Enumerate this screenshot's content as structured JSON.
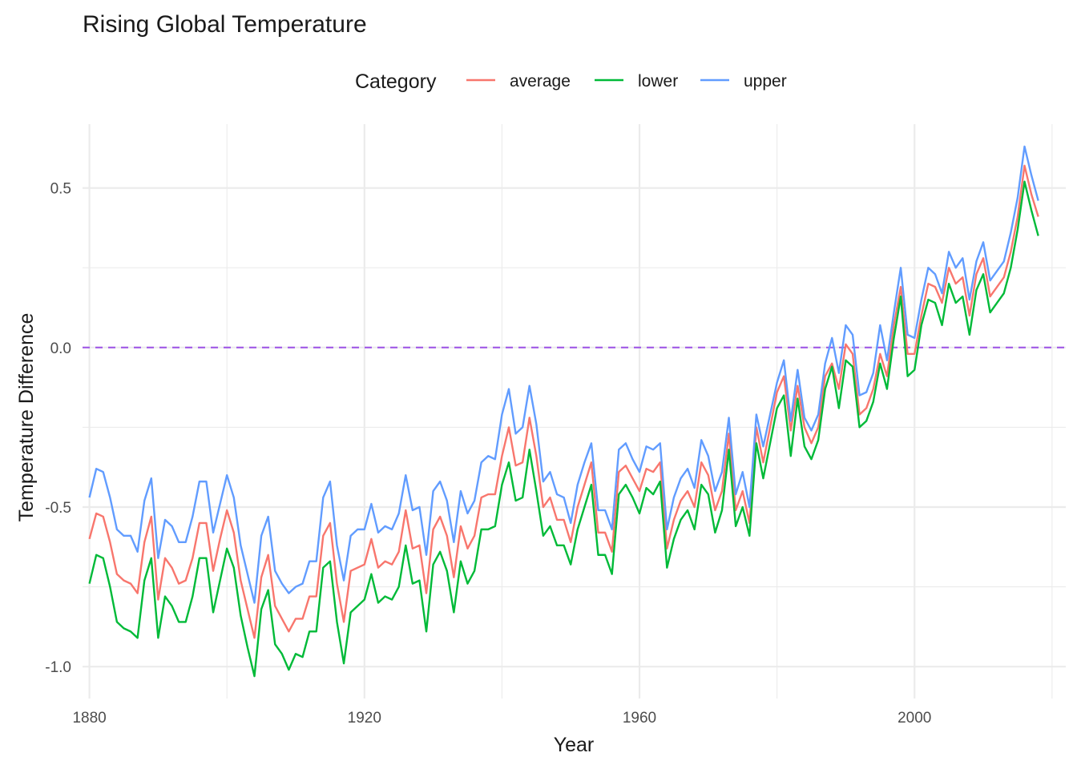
{
  "chart_data": {
    "type": "line",
    "title": "Rising Global Temperature",
    "xlabel": "Year",
    "ylabel": "Temperature Difference",
    "legend_title": "Category",
    "legend_position": "top",
    "grid": true,
    "xlim": [
      1879,
      2022
    ],
    "ylim": [
      -1.1,
      0.7
    ],
    "x_ticks": [
      1880,
      1920,
      1960,
      2000
    ],
    "x_tick_labels": [
      "1880",
      "1920",
      "1960",
      "2000"
    ],
    "y_ticks": [
      -1.0,
      -0.5,
      0.0,
      0.5
    ],
    "y_tick_labels": [
      "-1.0",
      "-0.5",
      "0.0",
      "0.5"
    ],
    "reference_line": {
      "y": 0.0,
      "style": "dashed",
      "color": "#a15ae6"
    },
    "x": [
      1880,
      1881,
      1882,
      1883,
      1884,
      1885,
      1886,
      1887,
      1888,
      1889,
      1890,
      1891,
      1892,
      1893,
      1894,
      1895,
      1896,
      1897,
      1898,
      1899,
      1900,
      1901,
      1902,
      1903,
      1904,
      1905,
      1906,
      1907,
      1908,
      1909,
      1910,
      1911,
      1912,
      1913,
      1914,
      1915,
      1916,
      1917,
      1918,
      1919,
      1920,
      1921,
      1922,
      1923,
      1924,
      1925,
      1926,
      1927,
      1928,
      1929,
      1930,
      1931,
      1932,
      1933,
      1934,
      1935,
      1936,
      1937,
      1938,
      1939,
      1940,
      1941,
      1942,
      1943,
      1944,
      1945,
      1946,
      1947,
      1948,
      1949,
      1950,
      1951,
      1952,
      1953,
      1954,
      1955,
      1956,
      1957,
      1958,
      1959,
      1960,
      1961,
      1962,
      1963,
      1964,
      1965,
      1966,
      1967,
      1968,
      1969,
      1970,
      1971,
      1972,
      1973,
      1974,
      1975,
      1976,
      1977,
      1978,
      1979,
      1980,
      1981,
      1982,
      1983,
      1984,
      1985,
      1986,
      1987,
      1988,
      1989,
      1990,
      1991,
      1992,
      1993,
      1994,
      1995,
      1996,
      1997,
      1998,
      1999,
      2000,
      2001,
      2002,
      2003,
      2004,
      2005,
      2006,
      2007,
      2008,
      2009,
      2010,
      2011,
      2012,
      2013,
      2014,
      2015,
      2016,
      2017,
      2018
    ],
    "series": [
      {
        "name": "average",
        "color": "#F8766D",
        "values": [
          -0.6,
          -0.52,
          -0.53,
          -0.61,
          -0.71,
          -0.73,
          -0.74,
          -0.77,
          -0.61,
          -0.53,
          -0.79,
          -0.66,
          -0.69,
          -0.74,
          -0.73,
          -0.66,
          -0.55,
          -0.55,
          -0.7,
          -0.6,
          -0.51,
          -0.58,
          -0.73,
          -0.82,
          -0.91,
          -0.72,
          -0.65,
          -0.81,
          -0.85,
          -0.89,
          -0.85,
          -0.85,
          -0.78,
          -0.78,
          -0.59,
          -0.55,
          -0.74,
          -0.86,
          -0.7,
          -0.69,
          -0.68,
          -0.6,
          -0.69,
          -0.67,
          -0.68,
          -0.64,
          -0.51,
          -0.63,
          -0.62,
          -0.77,
          -0.57,
          -0.53,
          -0.59,
          -0.72,
          -0.56,
          -0.63,
          -0.59,
          -0.47,
          -0.46,
          -0.46,
          -0.34,
          -0.25,
          -0.37,
          -0.36,
          -0.22,
          -0.34,
          -0.5,
          -0.47,
          -0.54,
          -0.54,
          -0.61,
          -0.5,
          -0.43,
          -0.36,
          -0.58,
          -0.58,
          -0.64,
          -0.39,
          -0.37,
          -0.41,
          -0.45,
          -0.38,
          -0.39,
          -0.36,
          -0.63,
          -0.54,
          -0.48,
          -0.45,
          -0.5,
          -0.36,
          -0.4,
          -0.51,
          -0.45,
          -0.27,
          -0.51,
          -0.45,
          -0.55,
          -0.25,
          -0.36,
          -0.25,
          -0.14,
          -0.09,
          -0.26,
          -0.12,
          -0.25,
          -0.3,
          -0.25,
          -0.09,
          -0.05,
          -0.13,
          0.01,
          -0.02,
          -0.21,
          -0.19,
          -0.13,
          -0.02,
          -0.09,
          0.07,
          0.19,
          -0.02,
          -0.02,
          0.1,
          0.2,
          0.19,
          0.14,
          0.25,
          0.2,
          0.22,
          0.1,
          0.23,
          0.28,
          0.16,
          0.19,
          0.22,
          0.3,
          0.41,
          0.57,
          0.48,
          0.41
        ]
      },
      {
        "name": "lower",
        "color": "#00BA38",
        "values": [
          -0.74,
          -0.65,
          -0.66,
          -0.75,
          -0.86,
          -0.88,
          -0.89,
          -0.91,
          -0.73,
          -0.66,
          -0.91,
          -0.78,
          -0.81,
          -0.86,
          -0.86,
          -0.78,
          -0.66,
          -0.66,
          -0.83,
          -0.73,
          -0.63,
          -0.69,
          -0.84,
          -0.94,
          -1.03,
          -0.82,
          -0.76,
          -0.93,
          -0.96,
          -1.01,
          -0.96,
          -0.97,
          -0.89,
          -0.89,
          -0.69,
          -0.67,
          -0.86,
          -0.99,
          -0.83,
          -0.81,
          -0.79,
          -0.71,
          -0.8,
          -0.78,
          -0.79,
          -0.75,
          -0.62,
          -0.74,
          -0.73,
          -0.89,
          -0.68,
          -0.64,
          -0.7,
          -0.83,
          -0.67,
          -0.74,
          -0.7,
          -0.57,
          -0.57,
          -0.56,
          -0.43,
          -0.36,
          -0.48,
          -0.47,
          -0.32,
          -0.45,
          -0.59,
          -0.56,
          -0.62,
          -0.62,
          -0.68,
          -0.57,
          -0.5,
          -0.43,
          -0.65,
          -0.65,
          -0.71,
          -0.46,
          -0.43,
          -0.47,
          -0.52,
          -0.44,
          -0.46,
          -0.42,
          -0.69,
          -0.6,
          -0.54,
          -0.51,
          -0.57,
          -0.43,
          -0.46,
          -0.58,
          -0.51,
          -0.32,
          -0.56,
          -0.5,
          -0.59,
          -0.3,
          -0.41,
          -0.3,
          -0.19,
          -0.15,
          -0.34,
          -0.16,
          -0.31,
          -0.35,
          -0.29,
          -0.13,
          -0.06,
          -0.19,
          -0.04,
          -0.06,
          -0.25,
          -0.23,
          -0.17,
          -0.05,
          -0.13,
          0.03,
          0.16,
          -0.09,
          -0.07,
          0.07,
          0.15,
          0.14,
          0.07,
          0.2,
          0.14,
          0.16,
          0.04,
          0.18,
          0.23,
          0.11,
          0.14,
          0.17,
          0.25,
          0.37,
          0.52,
          0.43,
          0.35
        ]
      },
      {
        "name": "upper",
        "color": "#619CFF",
        "values": [
          -0.47,
          -0.38,
          -0.39,
          -0.47,
          -0.57,
          -0.59,
          -0.59,
          -0.64,
          -0.48,
          -0.41,
          -0.66,
          -0.54,
          -0.56,
          -0.61,
          -0.61,
          -0.53,
          -0.42,
          -0.42,
          -0.58,
          -0.49,
          -0.4,
          -0.47,
          -0.62,
          -0.71,
          -0.8,
          -0.59,
          -0.53,
          -0.7,
          -0.74,
          -0.77,
          -0.75,
          -0.74,
          -0.67,
          -0.67,
          -0.47,
          -0.42,
          -0.62,
          -0.73,
          -0.59,
          -0.57,
          -0.57,
          -0.49,
          -0.58,
          -0.56,
          -0.57,
          -0.52,
          -0.4,
          -0.51,
          -0.5,
          -0.65,
          -0.45,
          -0.42,
          -0.48,
          -0.61,
          -0.45,
          -0.52,
          -0.48,
          -0.36,
          -0.34,
          -0.35,
          -0.21,
          -0.13,
          -0.27,
          -0.25,
          -0.12,
          -0.24,
          -0.42,
          -0.39,
          -0.46,
          -0.47,
          -0.55,
          -0.43,
          -0.36,
          -0.3,
          -0.51,
          -0.51,
          -0.57,
          -0.32,
          -0.3,
          -0.35,
          -0.39,
          -0.31,
          -0.32,
          -0.3,
          -0.57,
          -0.47,
          -0.41,
          -0.38,
          -0.44,
          -0.29,
          -0.34,
          -0.45,
          -0.39,
          -0.22,
          -0.46,
          -0.39,
          -0.5,
          -0.21,
          -0.31,
          -0.21,
          -0.11,
          -0.04,
          -0.23,
          -0.07,
          -0.22,
          -0.26,
          -0.21,
          -0.05,
          0.03,
          -0.08,
          0.07,
          0.04,
          -0.15,
          -0.14,
          -0.08,
          0.07,
          -0.04,
          0.11,
          0.25,
          0.04,
          0.03,
          0.15,
          0.25,
          0.23,
          0.17,
          0.3,
          0.25,
          0.28,
          0.15,
          0.27,
          0.33,
          0.21,
          0.24,
          0.27,
          0.36,
          0.47,
          0.63,
          0.54,
          0.46
        ]
      }
    ]
  }
}
